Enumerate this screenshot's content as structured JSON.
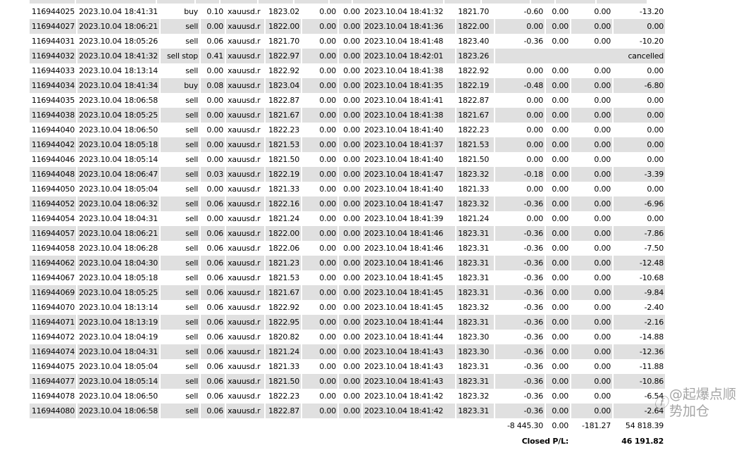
{
  "rows": [
    [
      "116944025",
      "2023.10.04 18:41:31",
      "buy",
      "0.10",
      "xauusd.r",
      "1823.02",
      "0.00",
      "0.00",
      "2023.10.04 18:41:32",
      "1821.70",
      "-0.60",
      "0.00",
      "0.00",
      "-13.20"
    ],
    [
      "116944027",
      "2023.10.04 18:06:21",
      "sell",
      "0.00",
      "xauusd.r",
      "1822.00",
      "0.00",
      "0.00",
      "2023.10.04 18:41:36",
      "1822.00",
      "0.00",
      "0.00",
      "0.00",
      "0.00"
    ],
    [
      "116944031",
      "2023.10.04 18:05:26",
      "sell",
      "0.06",
      "xauusd.r",
      "1821.70",
      "0.00",
      "0.00",
      "2023.10.04 18:41:48",
      "1823.40",
      "-0.36",
      "0.00",
      "0.00",
      "-10.20"
    ],
    [
      "116944032",
      "2023.10.04 18:41:32",
      "sell stop",
      "0.41",
      "xauusd.r",
      "1822.97",
      "0.00",
      "0.00",
      "2023.10.04 18:42:01",
      "1823.26",
      "cancelled"
    ],
    [
      "116944033",
      "2023.10.04 18:13:14",
      "sell",
      "0.00",
      "xauusd.r",
      "1822.92",
      "0.00",
      "0.00",
      "2023.10.04 18:41:38",
      "1822.92",
      "0.00",
      "0.00",
      "0.00",
      "0.00"
    ],
    [
      "116944034",
      "2023.10.04 18:41:34",
      "buy",
      "0.08",
      "xauusd.r",
      "1823.04",
      "0.00",
      "0.00",
      "2023.10.04 18:41:35",
      "1822.19",
      "-0.48",
      "0.00",
      "0.00",
      "-6.80"
    ],
    [
      "116944035",
      "2023.10.04 18:06:58",
      "sell",
      "0.00",
      "xauusd.r",
      "1822.87",
      "0.00",
      "0.00",
      "2023.10.04 18:41:41",
      "1822.87",
      "0.00",
      "0.00",
      "0.00",
      "0.00"
    ],
    [
      "116944038",
      "2023.10.04 18:05:25",
      "sell",
      "0.00",
      "xauusd.r",
      "1821.67",
      "0.00",
      "0.00",
      "2023.10.04 18:41:38",
      "1821.67",
      "0.00",
      "0.00",
      "0.00",
      "0.00"
    ],
    [
      "116944040",
      "2023.10.04 18:06:50",
      "sell",
      "0.00",
      "xauusd.r",
      "1822.23",
      "0.00",
      "0.00",
      "2023.10.04 18:41:40",
      "1822.23",
      "0.00",
      "0.00",
      "0.00",
      "0.00"
    ],
    [
      "116944042",
      "2023.10.04 18:05:18",
      "sell",
      "0.00",
      "xauusd.r",
      "1821.53",
      "0.00",
      "0.00",
      "2023.10.04 18:41:37",
      "1821.53",
      "0.00",
      "0.00",
      "0.00",
      "0.00"
    ],
    [
      "116944046",
      "2023.10.04 18:05:14",
      "sell",
      "0.00",
      "xauusd.r",
      "1821.50",
      "0.00",
      "0.00",
      "2023.10.04 18:41:40",
      "1821.50",
      "0.00",
      "0.00",
      "0.00",
      "0.00"
    ],
    [
      "116944048",
      "2023.10.04 18:06:47",
      "sell",
      "0.03",
      "xauusd.r",
      "1822.19",
      "0.00",
      "0.00",
      "2023.10.04 18:41:47",
      "1823.32",
      "-0.18",
      "0.00",
      "0.00",
      "-3.39"
    ],
    [
      "116944050",
      "2023.10.04 18:05:04",
      "sell",
      "0.00",
      "xauusd.r",
      "1821.33",
      "0.00",
      "0.00",
      "2023.10.04 18:41:40",
      "1821.33",
      "0.00",
      "0.00",
      "0.00",
      "0.00"
    ],
    [
      "116944052",
      "2023.10.04 18:06:32",
      "sell",
      "0.06",
      "xauusd.r",
      "1822.16",
      "0.00",
      "0.00",
      "2023.10.04 18:41:47",
      "1823.32",
      "-0.36",
      "0.00",
      "0.00",
      "-6.96"
    ],
    [
      "116944054",
      "2023.10.04 18:04:31",
      "sell",
      "0.00",
      "xauusd.r",
      "1821.24",
      "0.00",
      "0.00",
      "2023.10.04 18:41:39",
      "1821.24",
      "0.00",
      "0.00",
      "0.00",
      "0.00"
    ],
    [
      "116944057",
      "2023.10.04 18:06:21",
      "sell",
      "0.06",
      "xauusd.r",
      "1822.00",
      "0.00",
      "0.00",
      "2023.10.04 18:41:46",
      "1823.31",
      "-0.36",
      "0.00",
      "0.00",
      "-7.86"
    ],
    [
      "116944058",
      "2023.10.04 18:06:28",
      "sell",
      "0.06",
      "xauusd.r",
      "1822.06",
      "0.00",
      "0.00",
      "2023.10.04 18:41:46",
      "1823.31",
      "-0.36",
      "0.00",
      "0.00",
      "-7.50"
    ],
    [
      "116944062",
      "2023.10.04 18:04:30",
      "sell",
      "0.06",
      "xauusd.r",
      "1821.23",
      "0.00",
      "0.00",
      "2023.10.04 18:41:46",
      "1823.31",
      "-0.36",
      "0.00",
      "0.00",
      "-12.48"
    ],
    [
      "116944067",
      "2023.10.04 18:05:18",
      "sell",
      "0.06",
      "xauusd.r",
      "1821.53",
      "0.00",
      "0.00",
      "2023.10.04 18:41:45",
      "1823.31",
      "-0.36",
      "0.00",
      "0.00",
      "-10.68"
    ],
    [
      "116944069",
      "2023.10.04 18:05:25",
      "sell",
      "0.06",
      "xauusd.r",
      "1821.67",
      "0.00",
      "0.00",
      "2023.10.04 18:41:45",
      "1823.31",
      "-0.36",
      "0.00",
      "0.00",
      "-9.84"
    ],
    [
      "116944070",
      "2023.10.04 18:13:14",
      "sell",
      "0.06",
      "xauusd.r",
      "1822.92",
      "0.00",
      "0.00",
      "2023.10.04 18:41:45",
      "1823.32",
      "-0.36",
      "0.00",
      "0.00",
      "-2.40"
    ],
    [
      "116944071",
      "2023.10.04 18:13:19",
      "sell",
      "0.06",
      "xauusd.r",
      "1822.95",
      "0.00",
      "0.00",
      "2023.10.04 18:41:44",
      "1823.31",
      "-0.36",
      "0.00",
      "0.00",
      "-2.16"
    ],
    [
      "116944072",
      "2023.10.04 18:04:19",
      "sell",
      "0.06",
      "xauusd.r",
      "1820.82",
      "0.00",
      "0.00",
      "2023.10.04 18:41:44",
      "1823.30",
      "-0.36",
      "0.00",
      "0.00",
      "-14.88"
    ],
    [
      "116944074",
      "2023.10.04 18:04:31",
      "sell",
      "0.06",
      "xauusd.r",
      "1821.24",
      "0.00",
      "0.00",
      "2023.10.04 18:41:43",
      "1823.30",
      "-0.36",
      "0.00",
      "0.00",
      "-12.36"
    ],
    [
      "116944075",
      "2023.10.04 18:05:04",
      "sell",
      "0.06",
      "xauusd.r",
      "1821.33",
      "0.00",
      "0.00",
      "2023.10.04 18:41:43",
      "1823.31",
      "-0.36",
      "0.00",
      "0.00",
      "-11.88"
    ],
    [
      "116944077",
      "2023.10.04 18:05:14",
      "sell",
      "0.06",
      "xauusd.r",
      "1821.50",
      "0.00",
      "0.00",
      "2023.10.04 18:41:43",
      "1823.31",
      "-0.36",
      "0.00",
      "0.00",
      "-10.86"
    ],
    [
      "116944078",
      "2023.10.04 18:06:50",
      "sell",
      "0.06",
      "xauusd.r",
      "1822.23",
      "0.00",
      "0.00",
      "2023.10.04 18:41:42",
      "1823.32",
      "-0.36",
      "0.00",
      "0.00",
      "-6.54"
    ],
    [
      "116944080",
      "2023.10.04 18:06:58",
      "sell",
      "0.06",
      "xauusd.r",
      "1822.87",
      "0.00",
      "0.00",
      "2023.10.04 18:41:42",
      "1823.31",
      "-0.36",
      "0.00",
      "0.00",
      "-2.64"
    ]
  ],
  "totals": {
    "commission": "-8 445.30",
    "taxes": "0.00",
    "swap": "-181.27",
    "profit": "54 818.39"
  },
  "closed_pl": {
    "label": "Closed P/L:",
    "value": "46 191.82"
  },
  "watermark": {
    "text": "@起爆点顺势加仓",
    "icon": "weibo-style-logo-icon"
  },
  "colors": {
    "alt_row": "#e0e0e0"
  }
}
